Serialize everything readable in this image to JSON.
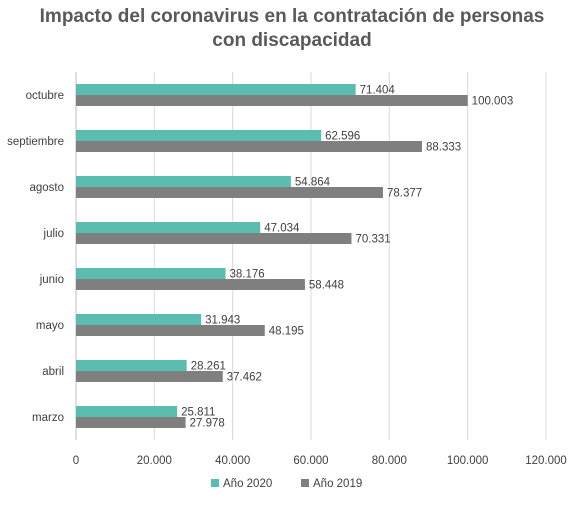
{
  "chart_data": {
    "type": "bar",
    "orientation": "horizontal",
    "title": "Impacto del coronavirus en la contratación de personas con discapacidad",
    "title_lines": [
      "Impacto del coronavirus en la contratación de personas",
      "con discapacidad"
    ],
    "categories": [
      "marzo",
      "abril",
      "mayo",
      "junio",
      "julio",
      "agosto",
      "septiembre",
      "octubre"
    ],
    "series": [
      {
        "name": "Año 2020",
        "color": "#5bbcb0",
        "values": [
          25811,
          28261,
          31943,
          38176,
          47034,
          54864,
          62596,
          71404
        ],
        "labels": [
          "25.811",
          "28.261",
          "31.943",
          "38.176",
          "47.034",
          "54.864",
          "62.596",
          "71.404"
        ]
      },
      {
        "name": "Año 2019",
        "color": "#7f7f7f",
        "values": [
          27978,
          37462,
          48195,
          58448,
          70331,
          78377,
          88333,
          100003
        ],
        "labels": [
          "27.978",
          "37.462",
          "48.195",
          "58.448",
          "70.331",
          "78.377",
          "88.333",
          "100.003"
        ]
      }
    ],
    "xlim": [
      0,
      120000
    ],
    "x_ticks": [
      0,
      20000,
      40000,
      60000,
      80000,
      100000,
      120000
    ],
    "x_tick_labels": [
      "0",
      "20.000",
      "40.000",
      "60.000",
      "80.000",
      "100.000",
      "120.000"
    ],
    "xlabel": "",
    "ylabel": "",
    "grid": "vertical",
    "grid_color": "#d9d9d9",
    "legend_position": "bottom"
  }
}
